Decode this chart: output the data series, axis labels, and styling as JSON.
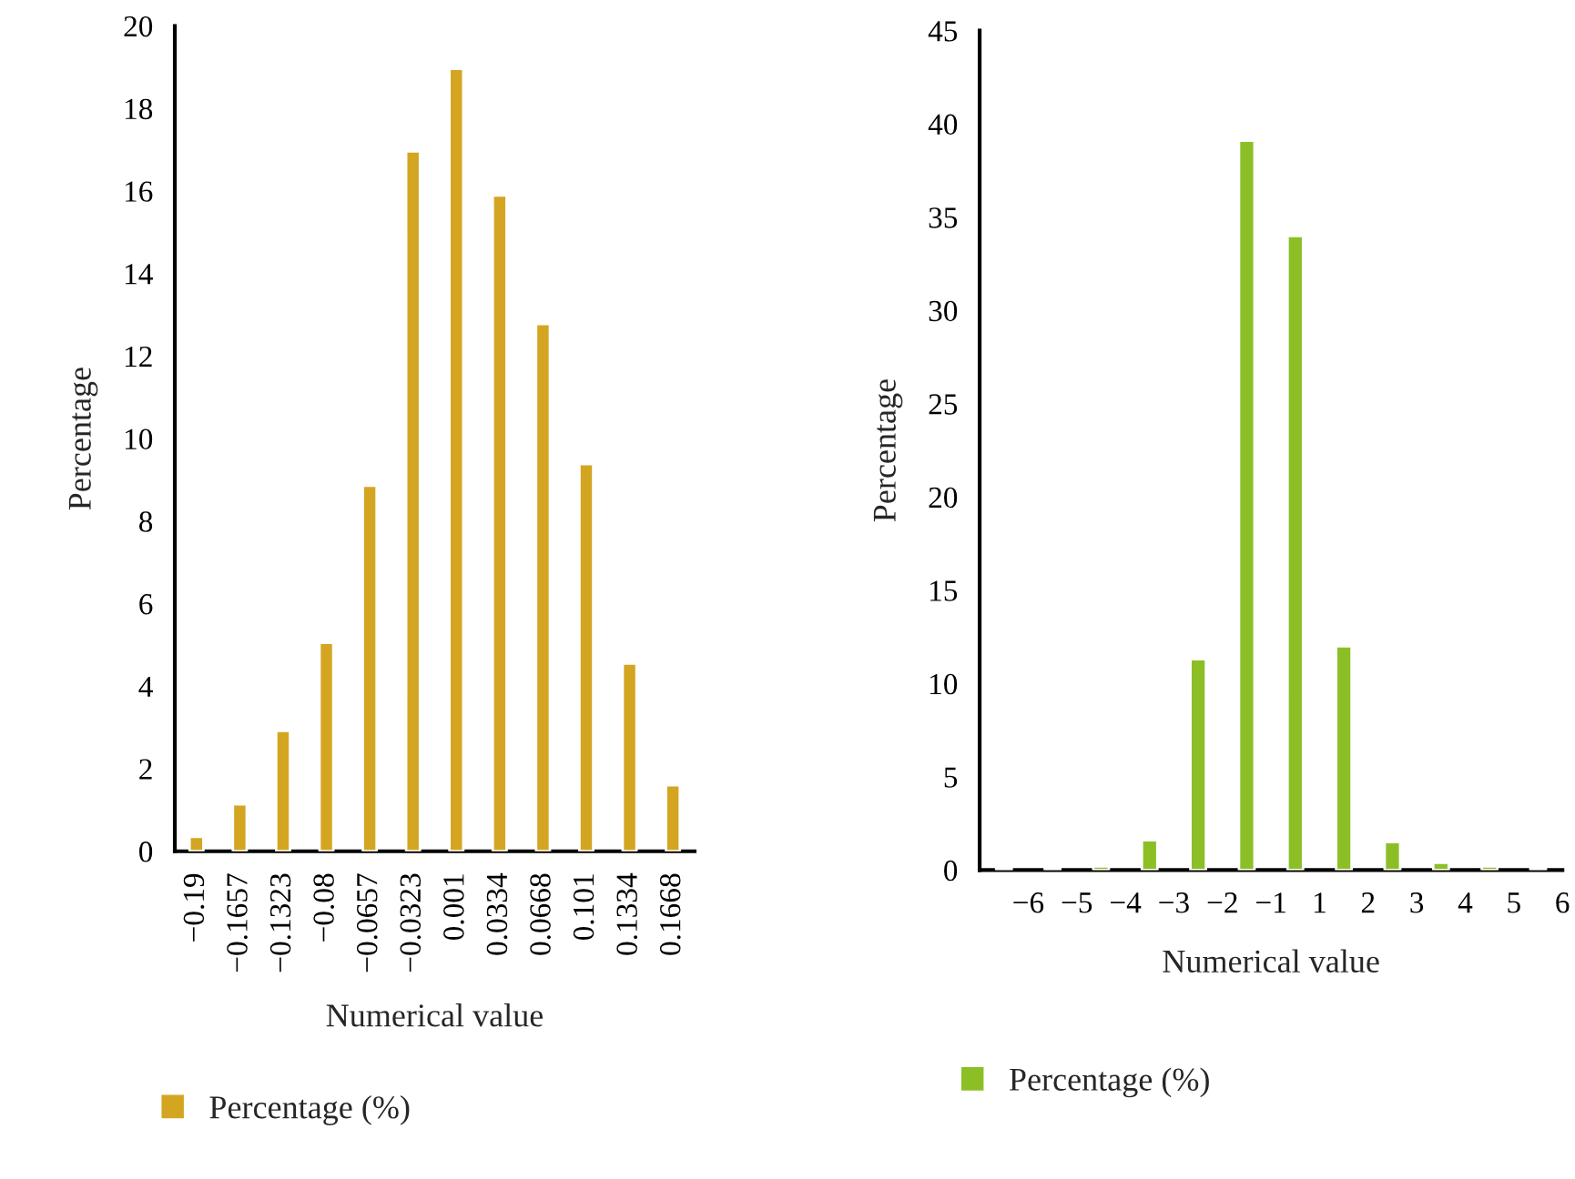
{
  "chart_data": [
    {
      "type": "bar",
      "xlabel": "Numerical value",
      "ylabel": "Percentage",
      "categories": [
        "−0.19",
        "−0.1657",
        "−0.1323",
        "−0.08",
        "−0.0657",
        "−0.0323",
        "0.001",
        "0.0334",
        "0.0668",
        "0.101",
        "0.1334",
        "0.1668"
      ],
      "series": [
        {
          "name": "Percentage (%)",
          "color": "#d4a520",
          "values": [
            0.35,
            1.14,
            2.92,
            5.05,
            8.86,
            16.96,
            18.96,
            15.89,
            12.78,
            9.38,
            4.55,
            1.6
          ]
        }
      ],
      "ylim": [
        0,
        20
      ],
      "yticks": [
        0,
        2,
        4,
        6,
        8,
        10,
        12,
        14,
        16,
        18,
        20
      ],
      "legend": "bottom",
      "grid": false
    },
    {
      "type": "bar",
      "xlabel": "Numerical value",
      "ylabel": "Percentage",
      "categories": [
        "−6",
        "−5",
        "−4",
        "−3",
        "−2",
        "−1",
        "1",
        "2",
        "3",
        "4",
        "5",
        "6"
      ],
      "series": [
        {
          "name": "Percentage (%)",
          "color": "#8cbf26",
          "values": [
            0.1,
            0.1,
            0.2,
            1.6,
            11.3,
            39.1,
            34.0,
            12.0,
            1.5,
            0.4,
            0.2,
            0.1
          ]
        }
      ],
      "ylim": [
        0,
        45
      ],
      "yticks": [
        0,
        5,
        10,
        15,
        20,
        25,
        30,
        35,
        40,
        45
      ],
      "legend": "bottom",
      "grid": false
    }
  ]
}
